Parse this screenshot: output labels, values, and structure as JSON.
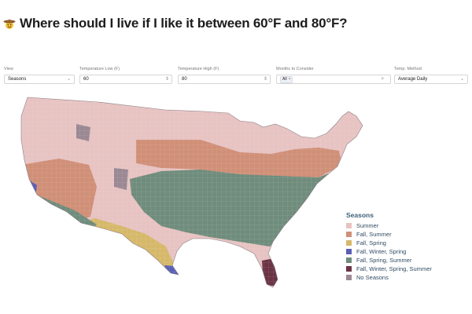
{
  "header": {
    "title": "Where should I live if I like it between 60°F and 80°F?",
    "emoji_icon": "cowboy-hat-face-icon"
  },
  "controls": {
    "view": {
      "label": "View",
      "value": "Seasons"
    },
    "temp_low": {
      "label": "Temperature Low (F)",
      "value": "60"
    },
    "temp_high": {
      "label": "Temperature High (F)",
      "value": "80"
    },
    "months": {
      "label": "Months to Consider",
      "tag": "All"
    },
    "method": {
      "label": "Temp. Method",
      "value": "Average Daily"
    }
  },
  "legend": {
    "title": "Seasons",
    "items": [
      {
        "label": "Summer",
        "color": "#e7c3c2"
      },
      {
        "label": "Fall, Summer",
        "color": "#d08f77"
      },
      {
        "label": "Fall, Spring",
        "color": "#d6b86a"
      },
      {
        "label": "Fall, Winter, Spring",
        "color": "#5a5fb6"
      },
      {
        "label": "Fall, Spring, Summer",
        "color": "#6f8c7c"
      },
      {
        "label": "Fall, Winter, Spring, Summer",
        "color": "#6b3445"
      },
      {
        "label": "No Seasons",
        "color": "#9a8893"
      }
    ]
  }
}
